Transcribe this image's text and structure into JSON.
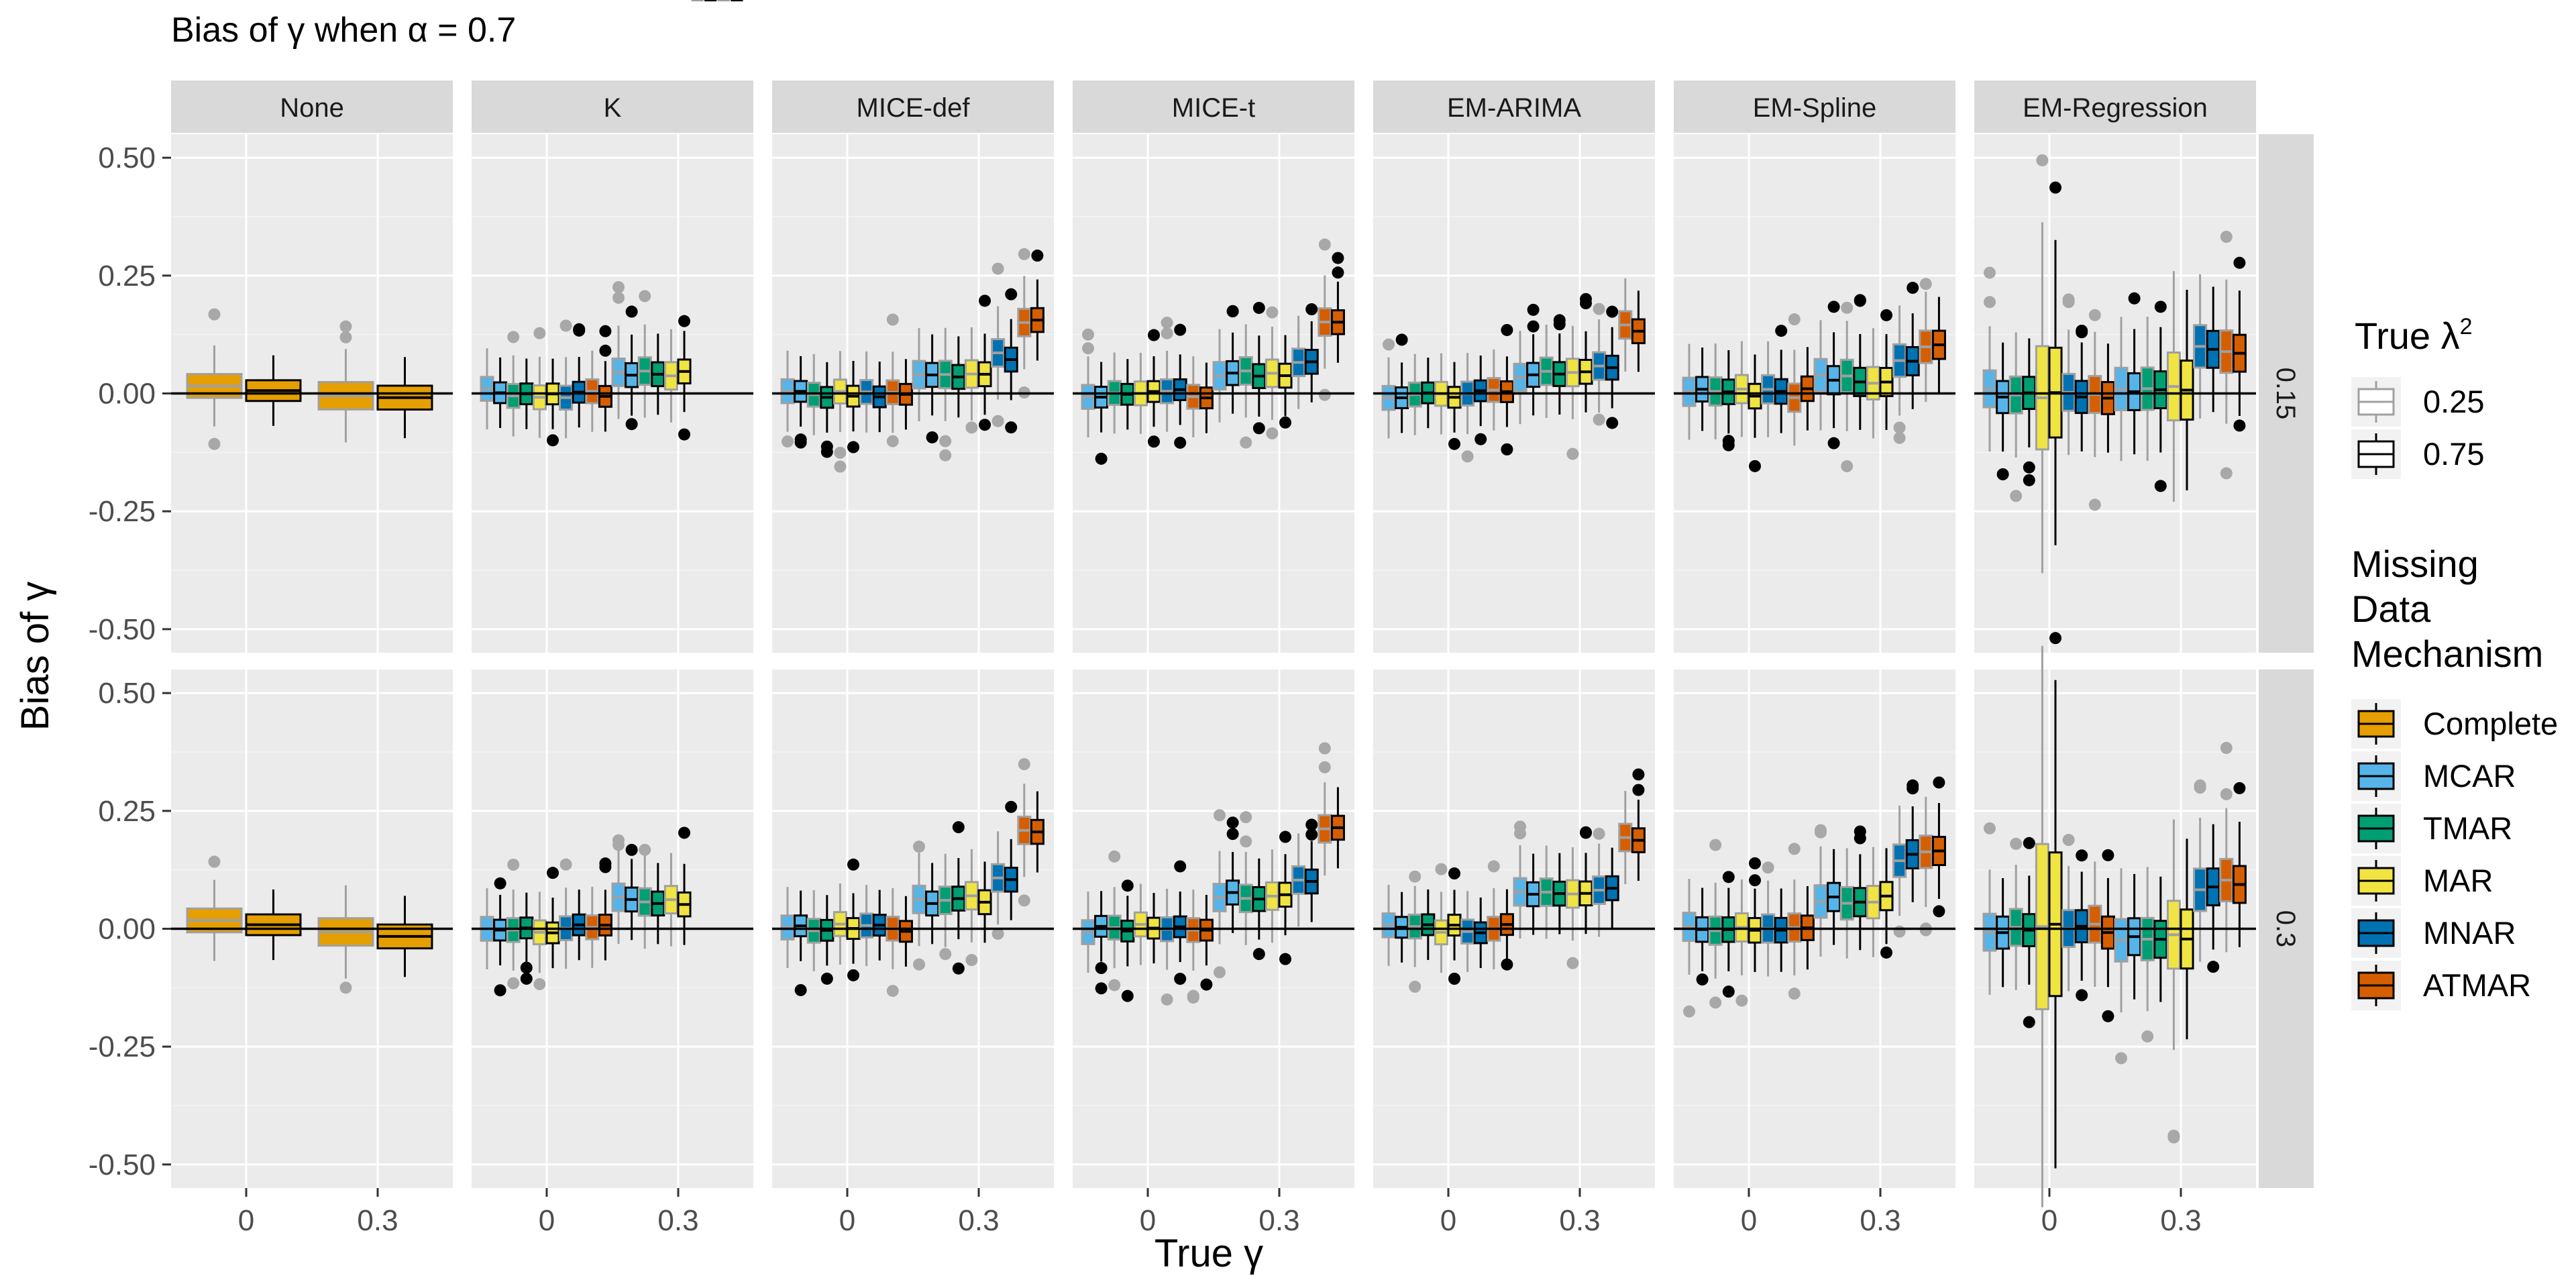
{
  "chart_data": {
    "type": "box",
    "title": "Bias of γ when α = 0.7",
    "xlabel": "True γ",
    "ylabel": "Bias of γ",
    "ylim": [
      -0.55,
      0.55
    ],
    "yticks": [
      "0.50",
      "0.25",
      "0.00",
      "-0.25",
      "-0.50"
    ],
    "x_categories": [
      "0",
      "0.3"
    ],
    "methods": [
      "None",
      "K",
      "MICE-def",
      "MICE-t",
      "EM-ARIMA",
      "EM-Spline",
      "EM-Regression"
    ],
    "row_facets": [
      "0.15",
      "0.3"
    ],
    "reference_line_y": 0,
    "mechanisms": [
      {
        "name": "Complete",
        "color": "#E69F00"
      },
      {
        "name": "MCAR",
        "color": "#56B4E9"
      },
      {
        "name": "TMAR",
        "color": "#009E73"
      },
      {
        "name": "MAR",
        "color": "#F0E442"
      },
      {
        "name": "MNAR",
        "color": "#0072B2"
      },
      {
        "name": "ATMAR",
        "color": "#D55E00"
      }
    ],
    "lambda_legend": {
      "title_main": "True λ",
      "title_sup": "2",
      "levels": [
        {
          "label": "0.25",
          "outline": "#A0A0A0"
        },
        {
          "label": "0.75",
          "outline": "#000000"
        }
      ]
    },
    "mechanism_legend_title": [
      "Missing",
      "Data",
      "Mechanism"
    ],
    "centers": {
      "0.15": {
        "None": [
          0.01,
          0.0
        ],
        "K": [
          0.0,
          0.0,
          0.04
        ],
        "MICE-def": [
          0.0,
          0.0,
          0.04,
          0.08,
          0.16
        ],
        "MICE-t": [
          0.0,
          0.0,
          0.04,
          0.07,
          0.15
        ],
        "EM-ARIMA": [
          0.0,
          0.0,
          0.04,
          0.05,
          0.14
        ],
        "EM-Spline": [
          0.0,
          0.0,
          0.03,
          0.07,
          0.1
        ],
        "EM-Regression": [
          0.0,
          0.0,
          0.01,
          0.09,
          0.09
        ]
      },
      "0.3": {
        "None": [
          0.01,
          0.0
        ],
        "K": [
          0.0,
          0.0,
          0.06
        ],
        "MICE-def": [
          0.0,
          0.0,
          0.06,
          0.1,
          0.21
        ],
        "MICE-t": [
          0.0,
          0.0,
          0.07,
          0.11,
          0.21
        ],
        "EM-ARIMA": [
          0.0,
          0.0,
          0.07,
          0.09,
          0.19
        ],
        "EM-Spline": [
          0.0,
          0.0,
          0.06,
          0.15,
          0.16
        ],
        "EM-Regression": [
          0.0,
          0.0,
          -0.02,
          0.08,
          0.1
        ]
      }
    }
  }
}
